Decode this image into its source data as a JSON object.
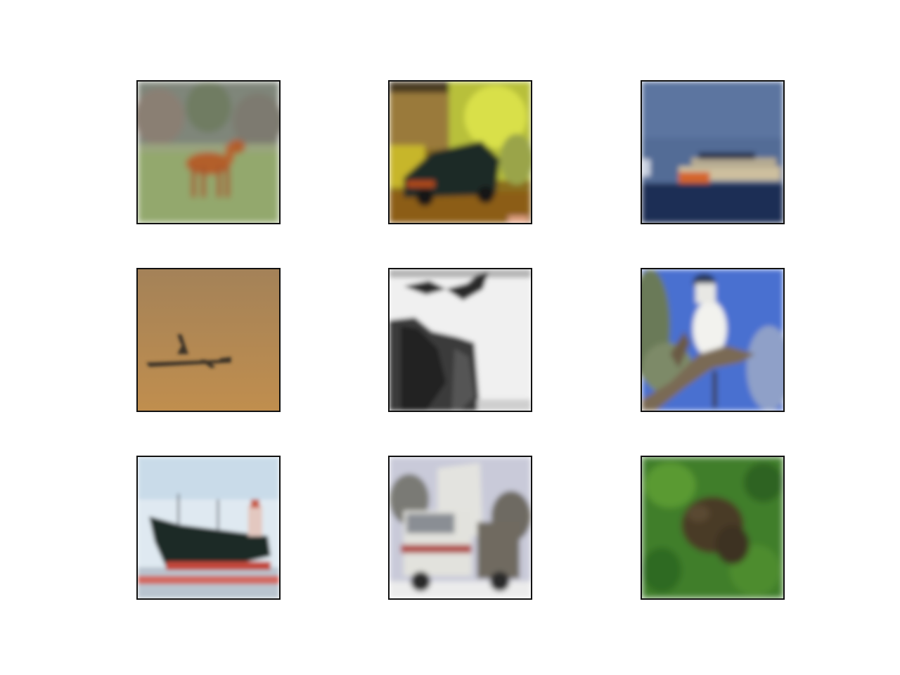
{
  "figure": {
    "rows": 3,
    "cols": 3,
    "background": "#ffffff",
    "panels": [
      {
        "subject": "horse",
        "palette": [
          "#7f8a79",
          "#8ea66f",
          "#b5622d"
        ]
      },
      {
        "subject": "car",
        "palette": [
          "#8a6d1e",
          "#d6d63a",
          "#1f2a25"
        ]
      },
      {
        "subject": "ship",
        "palette": [
          "#4d6894",
          "#2b3f66",
          "#c9b89a"
        ]
      },
      {
        "subject": "airplane",
        "palette": [
          "#b98b4f",
          "#a87d45",
          "#3d3428"
        ]
      },
      {
        "subject": "bird",
        "palette": [
          "#f0f0f0",
          "#2a2a2a",
          "#6b6b6b"
        ]
      },
      {
        "subject": "bird",
        "palette": [
          "#4a6ed1",
          "#f2f2ee",
          "#7a6a55"
        ]
      },
      {
        "subject": "ship",
        "palette": [
          "#dde8f0",
          "#1e2a26",
          "#c2463a"
        ]
      },
      {
        "subject": "truck",
        "palette": [
          "#c7c9d8",
          "#e6e6e1",
          "#6b6b66"
        ]
      },
      {
        "subject": "frog",
        "palette": [
          "#3f7f2a",
          "#5c9a34",
          "#4a3b26"
        ]
      }
    ]
  }
}
